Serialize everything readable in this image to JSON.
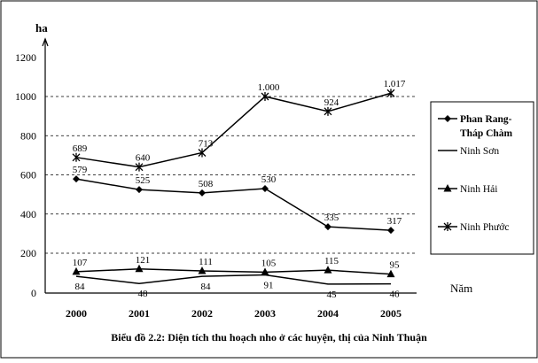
{
  "chart_data": {
    "type": "line",
    "title": "Biểu đồ 2.2: Diện tích thu hoạch nho ở các huyện, thị của Ninh Thuận",
    "ylabel": "ha",
    "xlabel": "Năm",
    "categories": [
      "2000",
      "2001",
      "2002",
      "2003",
      "2004",
      "2005"
    ],
    "yticks": [
      0,
      200,
      400,
      600,
      800,
      1000,
      1200
    ],
    "ylim": [
      0,
      1260
    ],
    "grid": "horizontal-dashed",
    "legend_position": "right",
    "series": [
      {
        "name": "Phan Rang-Tháp Chàm",
        "name_lines": [
          "Phan Rang-",
          "Tháp Chàm"
        ],
        "marker": "diamond",
        "values": [
          579,
          525,
          508,
          530,
          335,
          317
        ],
        "labels": [
          "579",
          "525",
          "508",
          "530",
          "335",
          "317"
        ]
      },
      {
        "name": "Ninh Sơn",
        "name_lines": [
          "Ninh Sơn"
        ],
        "marker": "none",
        "values": [
          84,
          48,
          84,
          91,
          45,
          46
        ],
        "labels": [
          "84",
          "48",
          "84",
          "91",
          "45",
          "46"
        ]
      },
      {
        "name": "Ninh Hải",
        "name_lines": [
          "Ninh Hải"
        ],
        "marker": "triangle",
        "values": [
          107,
          121,
          111,
          105,
          115,
          95
        ],
        "labels": [
          "107",
          "121",
          "111",
          "105",
          "115",
          "95"
        ]
      },
      {
        "name": "Ninh Phước",
        "name_lines": [
          "Ninh Phước"
        ],
        "marker": "star",
        "values": [
          689,
          640,
          713,
          1000,
          924,
          1017
        ],
        "labels": [
          "689",
          "640",
          "713",
          "1.000",
          "924",
          "1.017"
        ]
      }
    ]
  }
}
